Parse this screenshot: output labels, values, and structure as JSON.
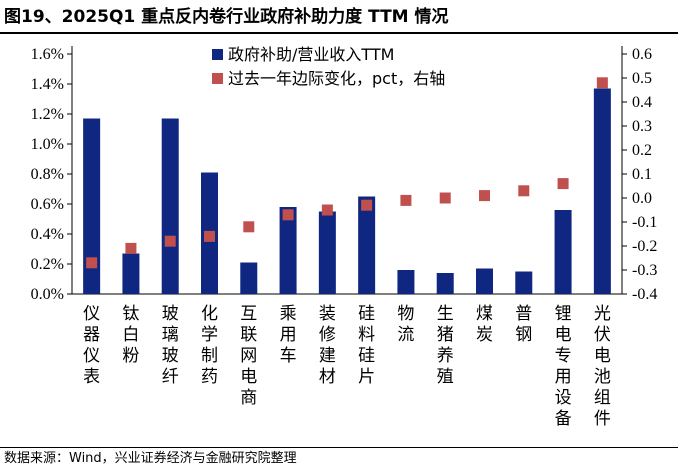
{
  "figure": {
    "title": "图19、2025Q1 重点反内卷行业政府补助力度 TTM 情况",
    "source": "数据来源：Wind，兴业证券经济与金融研究院整理"
  },
  "colors": {
    "bar": "#0f2781",
    "marker": "#c0504d"
  },
  "chart_data": {
    "type": "bar",
    "title": "",
    "categories": [
      "仪器仪表",
      "钛白粉",
      "玻璃玻纤",
      "化学制药",
      "互联网电商",
      "乘用车",
      "装修建材",
      "硅料硅片",
      "物流",
      "生猪养殖",
      "煤炭",
      "普钢",
      "锂电专用设备",
      "光伏电池组件"
    ],
    "series": [
      {
        "name": "政府补助/营业收入TTM",
        "kind": "bar",
        "axis": "left",
        "values": [
          1.17,
          0.27,
          1.17,
          0.81,
          0.21,
          0.58,
          0.55,
          0.65,
          0.16,
          0.14,
          0.17,
          0.15,
          0.56,
          1.37
        ]
      },
      {
        "name": "过去一年边际变化，pct，右轴",
        "kind": "marker",
        "axis": "right",
        "values": [
          -0.27,
          -0.21,
          -0.18,
          -0.16,
          -0.12,
          -0.07,
          -0.05,
          -0.03,
          -0.01,
          0.0,
          0.01,
          0.03,
          0.06,
          0.48
        ]
      }
    ],
    "y_left": {
      "min": 0,
      "max": 1.6,
      "step": 0.2,
      "tick_labels": [
        "0.0%",
        "0.2%",
        "0.4%",
        "0.6%",
        "0.8%",
        "1.0%",
        "1.2%",
        "1.4%",
        "1.6%"
      ]
    },
    "y_right": {
      "min": -0.4,
      "max": 0.6,
      "step": 0.1,
      "tick_labels": [
        "-0.4",
        "-0.3",
        "-0.2",
        "-0.1",
        "0.0",
        "0.1",
        "0.2",
        "0.3",
        "0.4",
        "0.5",
        "0.6"
      ]
    },
    "grid": false,
    "legend": "top-right"
  }
}
